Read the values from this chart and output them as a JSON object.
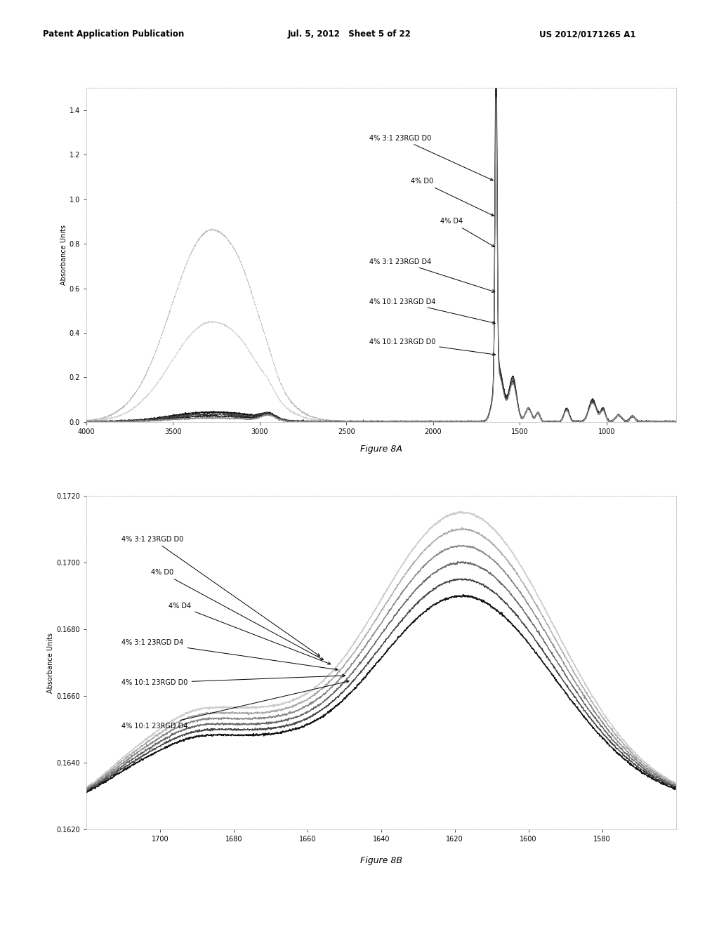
{
  "header_left": "Patent Application Publication",
  "header_mid": "Jul. 5, 2012   Sheet 5 of 22",
  "header_right": "US 2012/0171265 A1",
  "fig_label_A": "Figure 8A",
  "fig_label_B": "Figure 8B",
  "legend_labels_A": [
    "4% 3:1 23RGD D0",
    "4% D0",
    "4% D4",
    "4% 3:1 23RGD D4",
    "4% 10:1 23RGD D4",
    "4% 10:1 23RGD D0"
  ],
  "legend_labels_B": [
    "4% 3:1 23RGD D0",
    "4% D0",
    "4% D4",
    "4% 3:1 23RGD D4",
    "4% 10:1 23RGD D0",
    "4% 10:1 23RGD D4"
  ],
  "ylabel_A": "Absorbance Units",
  "ylabel_B": "Absorbance Units",
  "xlim_A": [
    4000,
    600
  ],
  "ylim_A": [
    0.0,
    1.5
  ],
  "yticks_A": [
    0.0,
    0.2,
    0.4,
    0.6,
    0.8,
    1.0,
    1.2,
    1.4
  ],
  "xticks_A": [
    4000,
    3500,
    3000,
    2500,
    2000,
    1500,
    1000
  ],
  "xlim_B": [
    1720,
    1560
  ],
  "ylim_B": [
    0.162,
    0.172
  ],
  "yticks_B": [
    0.162,
    0.164,
    0.166,
    0.168,
    0.17,
    0.172
  ],
  "ytick_labels_B": [
    "0.1620",
    "0.1640",
    "0.1660",
    "0.1680",
    "0.1700",
    "0.1720"
  ],
  "xticks_B": [
    1700,
    1680,
    1660,
    1640,
    1620,
    1600,
    1580
  ],
  "bg_color": "#ffffff"
}
